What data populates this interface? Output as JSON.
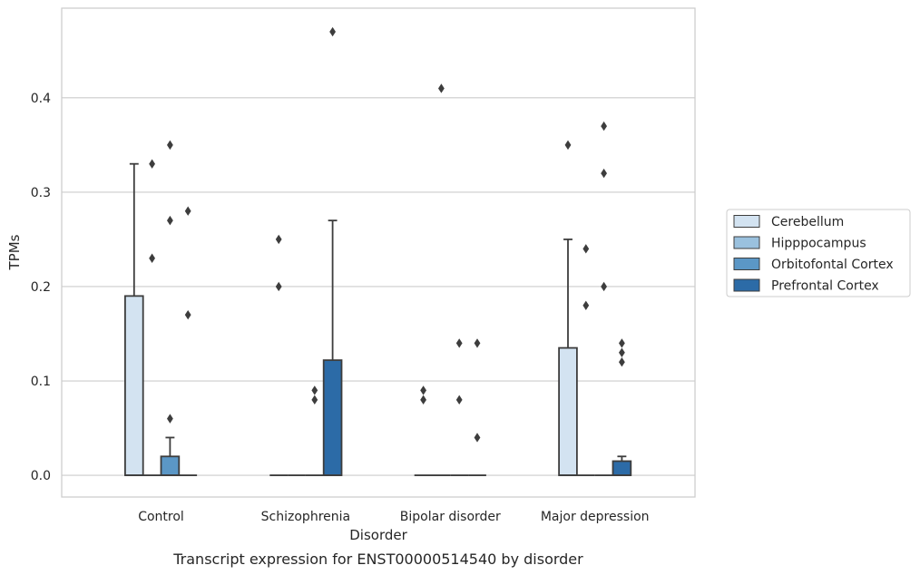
{
  "chart_data": {
    "type": "box",
    "caption": "Transcript expression for ENST00000514540 by disorder",
    "xlabel": "Disorder",
    "ylabel": "TPMs",
    "ylim": [
      -0.023,
      0.495
    ],
    "yticks": [
      "0.0",
      "0.1",
      "0.2",
      "0.3",
      "0.4"
    ],
    "ytick_values": [
      0.0,
      0.1,
      0.2,
      0.3,
      0.4
    ],
    "grid": "horizontal",
    "legend_position": "right",
    "categories": [
      "Control",
      "Schizophrenia",
      "Bipolar disorder",
      "Major depression"
    ],
    "series": [
      {
        "name": "Cerebellum",
        "color": "#d3e3f1",
        "boxes": [
          {
            "category": "Control",
            "q1": 0.0,
            "median": 0.0,
            "q3": 0.19,
            "whisker_low": 0.0,
            "whisker_high": 0.33,
            "outliers": []
          },
          {
            "category": "Schizophrenia",
            "q1": 0.0,
            "median": 0.0,
            "q3": 0.0,
            "whisker_low": 0.0,
            "whisker_high": 0.0,
            "outliers": [
              0.2,
              0.25
            ]
          },
          {
            "category": "Bipolar disorder",
            "q1": 0.0,
            "median": 0.0,
            "q3": 0.0,
            "whisker_low": 0.0,
            "whisker_high": 0.0,
            "outliers": [
              0.08,
              0.09
            ]
          },
          {
            "category": "Major depression",
            "q1": 0.0,
            "median": 0.0,
            "q3": 0.135,
            "whisker_low": 0.0,
            "whisker_high": 0.25,
            "outliers": [
              0.35
            ]
          }
        ]
      },
      {
        "name": "Hipppocampus",
        "color": "#9ac1de",
        "boxes": [
          {
            "category": "Control",
            "q1": 0.0,
            "median": 0.0,
            "q3": 0.0,
            "whisker_low": 0.0,
            "whisker_high": 0.0,
            "outliers": [
              0.23,
              0.33
            ]
          },
          {
            "category": "Schizophrenia",
            "q1": 0.0,
            "median": 0.0,
            "q3": 0.0,
            "whisker_low": 0.0,
            "whisker_high": 0.0,
            "outliers": []
          },
          {
            "category": "Bipolar disorder",
            "q1": 0.0,
            "median": 0.0,
            "q3": 0.0,
            "whisker_low": 0.0,
            "whisker_high": 0.0,
            "outliers": [
              0.41
            ]
          },
          {
            "category": "Major depression",
            "q1": 0.0,
            "median": 0.0,
            "q3": 0.0,
            "whisker_low": 0.0,
            "whisker_high": 0.0,
            "outliers": [
              0.18,
              0.24
            ]
          }
        ]
      },
      {
        "name": "Orbitofontal Cortex",
        "color": "#5b97c6",
        "boxes": [
          {
            "category": "Control",
            "q1": 0.0,
            "median": 0.0,
            "q3": 0.02,
            "whisker_low": 0.0,
            "whisker_high": 0.04,
            "outliers": [
              0.06,
              0.27,
              0.35
            ]
          },
          {
            "category": "Schizophrenia",
            "q1": 0.0,
            "median": 0.0,
            "q3": 0.0,
            "whisker_low": 0.0,
            "whisker_high": 0.0,
            "outliers": [
              0.08,
              0.09
            ]
          },
          {
            "category": "Bipolar disorder",
            "q1": 0.0,
            "median": 0.0,
            "q3": 0.0,
            "whisker_low": 0.0,
            "whisker_high": 0.0,
            "outliers": [
              0.08,
              0.14
            ]
          },
          {
            "category": "Major depression",
            "q1": 0.0,
            "median": 0.0,
            "q3": 0.0,
            "whisker_low": 0.0,
            "whisker_high": 0.0,
            "outliers": [
              0.2,
              0.32,
              0.37
            ]
          }
        ]
      },
      {
        "name": "Prefrontal Cortex",
        "color": "#2c6ba7",
        "boxes": [
          {
            "category": "Control",
            "q1": 0.0,
            "median": 0.0,
            "q3": 0.0,
            "whisker_low": 0.0,
            "whisker_high": 0.0,
            "outliers": [
              0.17,
              0.28
            ]
          },
          {
            "category": "Schizophrenia",
            "q1": 0.0,
            "median": 0.0,
            "q3": 0.122,
            "whisker_low": 0.0,
            "whisker_high": 0.27,
            "outliers": [
              0.47
            ]
          },
          {
            "category": "Bipolar disorder",
            "q1": 0.0,
            "median": 0.0,
            "q3": 0.0,
            "whisker_low": 0.0,
            "whisker_high": 0.0,
            "outliers": [
              0.04,
              0.14
            ]
          },
          {
            "category": "Major depression",
            "q1": 0.0,
            "median": 0.0,
            "q3": 0.015,
            "whisker_low": 0.0,
            "whisker_high": 0.02,
            "outliers": [
              0.12,
              0.13,
              0.14
            ]
          }
        ]
      }
    ]
  }
}
